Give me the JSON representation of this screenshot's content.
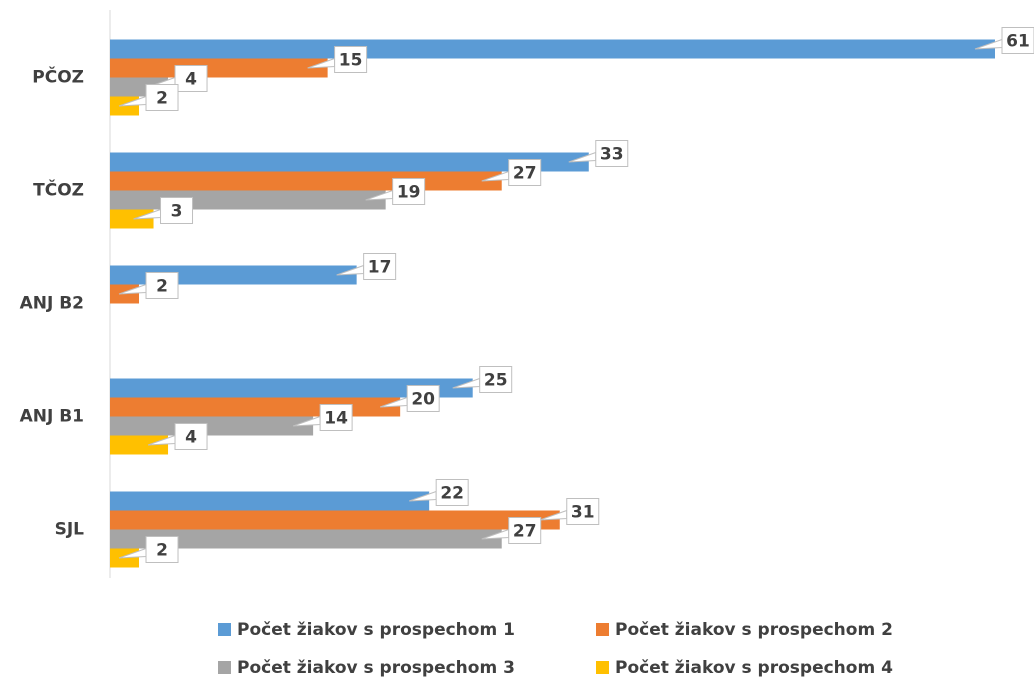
{
  "chart_data": {
    "type": "hbar",
    "categories": [
      "PČOZ",
      "TČOZ",
      "ANJ B2",
      "ANJ B1",
      "SJL"
    ],
    "series": [
      {
        "name": "Počet žiakov s prospechom 1",
        "color": "#5b9bd5",
        "values": [
          61,
          33,
          17,
          25,
          22
        ]
      },
      {
        "name": "Počet žiakov s prospechom 2",
        "color": "#ed7d31",
        "values": [
          15,
          27,
          2,
          20,
          31
        ]
      },
      {
        "name": "Počet žiakov s prospechom 3",
        "color": "#a5a5a5",
        "values": [
          4,
          19,
          null,
          14,
          27
        ]
      },
      {
        "name": "Počet žiakov s prospechom 4",
        "color": "#ffc000",
        "values": [
          2,
          3,
          null,
          4,
          2
        ]
      }
    ],
    "xlim": [
      0,
      61
    ]
  }
}
